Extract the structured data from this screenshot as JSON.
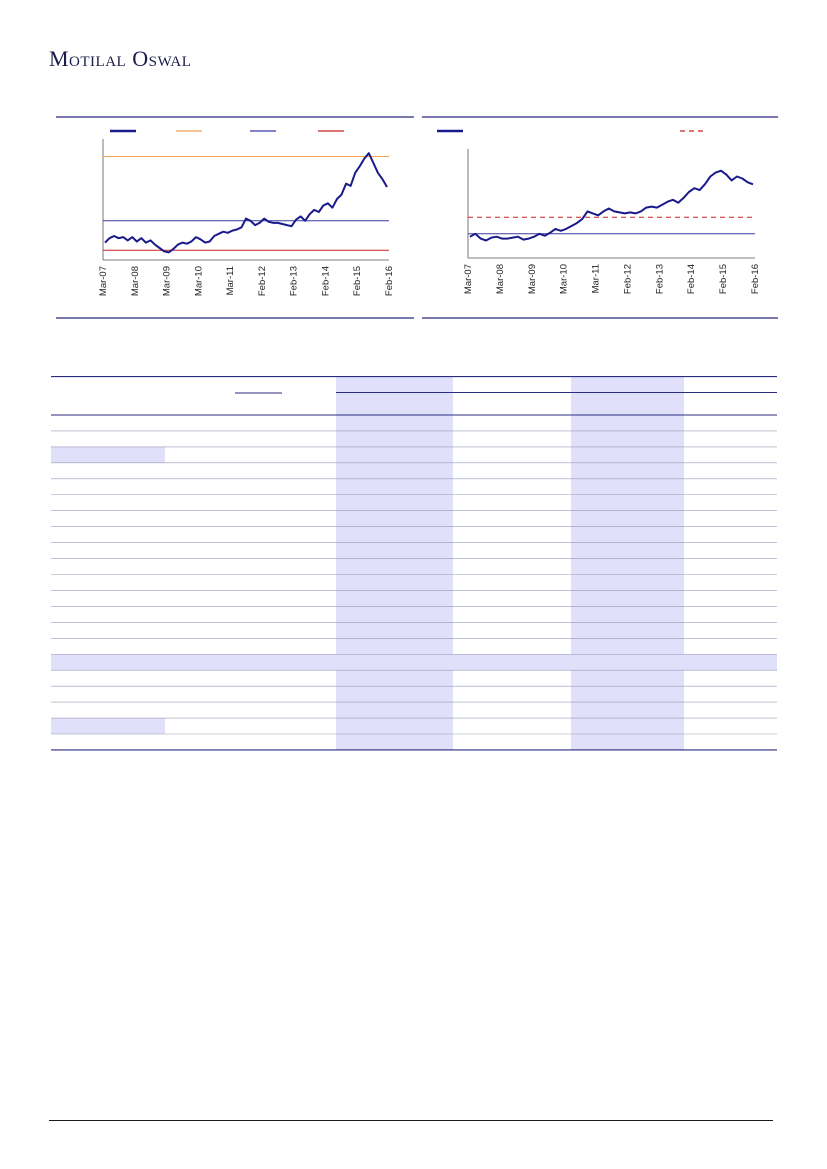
{
  "header": {
    "brand": "Motilal Oswal"
  },
  "colors": {
    "navy": "#1a1a8c",
    "orange": "#f0a050",
    "blue_line": "#3b3ba8",
    "red": "#cc2222",
    "rule": "#2b2b80",
    "shade": "#e0e0fb",
    "row_rule": "#9a9ab8"
  },
  "chart_left": {
    "type": "line",
    "x_tick_labels": [
      "Mar-07",
      "Mar-08",
      "Mar-09",
      "Mar-10",
      "Mar-11",
      "Feb-12",
      "Feb-13",
      "Feb-14",
      "Feb-15",
      "Feb-16"
    ],
    "legend_swatches": [
      {
        "color": "#1a1a8c",
        "style": "solid-thick"
      },
      {
        "color": "#f0a050",
        "style": "solid"
      },
      {
        "color": "#3b3ba8",
        "style": "solid"
      },
      {
        "color": "#cc2222",
        "style": "solid"
      }
    ],
    "reference_lines": [
      {
        "color": "#f0a050",
        "value": 0.95
      },
      {
        "color": "#3b3ba8",
        "value": 0.36
      },
      {
        "color": "#cc2222",
        "value": 0.09
      }
    ],
    "series": [
      {
        "color": "#1a1a8c",
        "values": [
          0.16,
          0.2,
          0.22,
          0.2,
          0.21,
          0.18,
          0.21,
          0.17,
          0.2,
          0.16,
          0.18,
          0.14,
          0.11,
          0.08,
          0.07,
          0.1,
          0.14,
          0.16,
          0.15,
          0.17,
          0.21,
          0.19,
          0.16,
          0.17,
          0.22,
          0.24,
          0.26,
          0.25,
          0.27,
          0.28,
          0.3,
          0.38,
          0.36,
          0.32,
          0.34,
          0.38,
          0.35,
          0.34,
          0.34,
          0.33,
          0.32,
          0.31,
          0.37,
          0.4,
          0.36,
          0.42,
          0.46,
          0.44,
          0.5,
          0.52,
          0.48,
          0.56,
          0.6,
          0.7,
          0.68,
          0.8,
          0.86,
          0.93,
          0.98,
          0.89,
          0.8,
          0.74,
          0.67
        ]
      }
    ],
    "ylim": [
      0,
      1
    ]
  },
  "chart_right": {
    "type": "line",
    "x_tick_labels": [
      "Mar-07",
      "Mar-08",
      "Mar-09",
      "Mar-10",
      "Mar-11",
      "Feb-12",
      "Feb-13",
      "Feb-14",
      "Feb-15",
      "Feb-16"
    ],
    "legend_swatches": [
      {
        "color": "#1a1a8c",
        "style": "solid-thick"
      },
      {
        "color": "#cc2222",
        "style": "dashed"
      }
    ],
    "reference_lines": [
      {
        "color": "#cc2222",
        "value": 0.42,
        "style": "dashed"
      },
      {
        "color": "#3b3ba8",
        "value": 0.25,
        "style": "solid"
      }
    ],
    "series": [
      {
        "color": "#1a1a8c",
        "values": [
          0.22,
          0.25,
          0.2,
          0.18,
          0.21,
          0.22,
          0.2,
          0.2,
          0.21,
          0.22,
          0.19,
          0.2,
          0.22,
          0.25,
          0.23,
          0.26,
          0.3,
          0.28,
          0.3,
          0.33,
          0.36,
          0.4,
          0.48,
          0.46,
          0.44,
          0.48,
          0.51,
          0.48,
          0.47,
          0.46,
          0.47,
          0.46,
          0.48,
          0.52,
          0.53,
          0.52,
          0.55,
          0.58,
          0.6,
          0.57,
          0.62,
          0.68,
          0.72,
          0.7,
          0.76,
          0.84,
          0.88,
          0.9,
          0.86,
          0.8,
          0.84,
          0.82,
          0.78,
          0.76
        ]
      }
    ],
    "ylim": [
      0,
      1
    ]
  },
  "table": {
    "row_count": 21,
    "section_rows": [
      3,
      16,
      20
    ],
    "full_shade_row": 16,
    "shaded_columns": [
      [
        336,
        453
      ],
      [
        571,
        684
      ]
    ]
  }
}
